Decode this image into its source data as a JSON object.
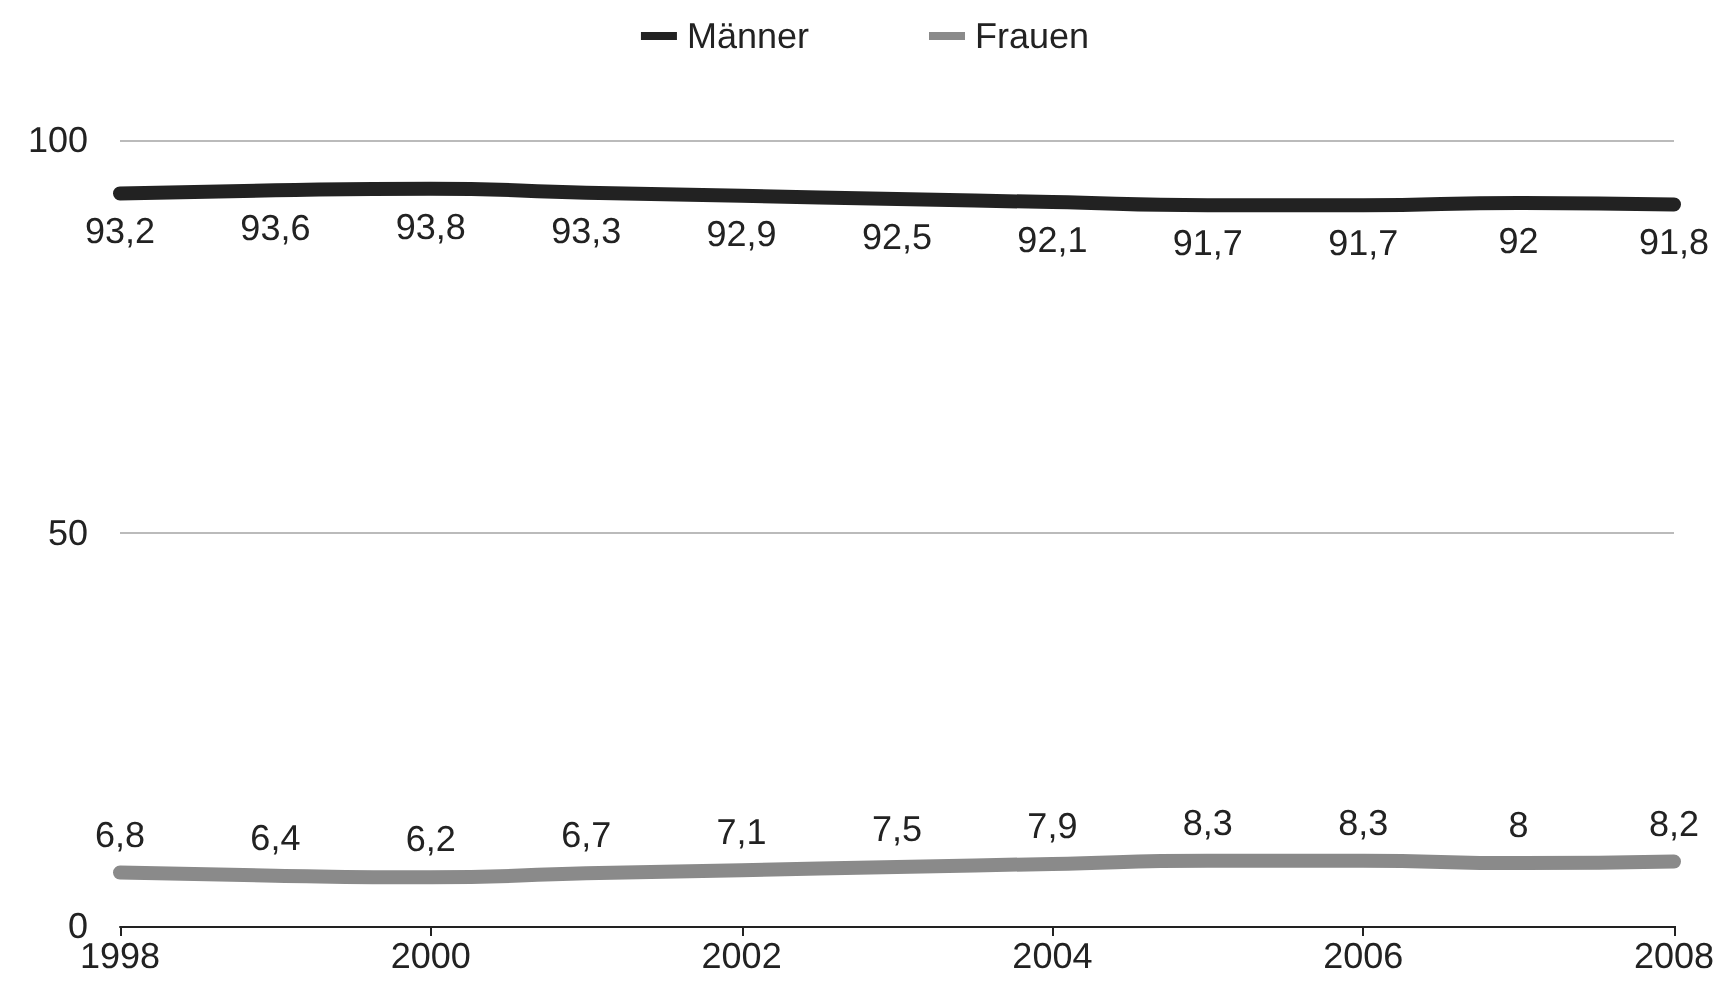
{
  "chart_data": {
    "type": "line",
    "x": [
      1998,
      1999,
      2000,
      2001,
      2002,
      2003,
      2004,
      2005,
      2006,
      2007,
      2008
    ],
    "xlim": [
      1998,
      2008
    ],
    "xticks": [
      1998,
      2000,
      2002,
      2004,
      2006,
      2008
    ],
    "ylim": [
      0,
      100
    ],
    "yticks": [
      0,
      50,
      100
    ],
    "grid": "y",
    "legend": "top",
    "marker": "none",
    "line_style": "solid",
    "series": [
      {
        "name": "Männer",
        "color": "#222222",
        "values": [
          93.2,
          93.6,
          93.8,
          93.3,
          92.9,
          92.5,
          92.1,
          91.7,
          91.7,
          92,
          91.8
        ],
        "value_labels": [
          "93,2",
          "93,6",
          "93,8",
          "93,3",
          "92,9",
          "92,5",
          "92,1",
          "91,7",
          "91,7",
          "92",
          "91,8"
        ]
      },
      {
        "name": "Frauen",
        "color": "#8a8a8a",
        "values": [
          6.8,
          6.4,
          6.2,
          6.7,
          7.1,
          7.5,
          7.9,
          8.3,
          8.3,
          8,
          8.2
        ],
        "value_labels": [
          "6,8",
          "6,4",
          "6,2",
          "6,7",
          "7,1",
          "7,5",
          "7,9",
          "8,3",
          "8,3",
          "8",
          "8,2"
        ]
      }
    ]
  }
}
